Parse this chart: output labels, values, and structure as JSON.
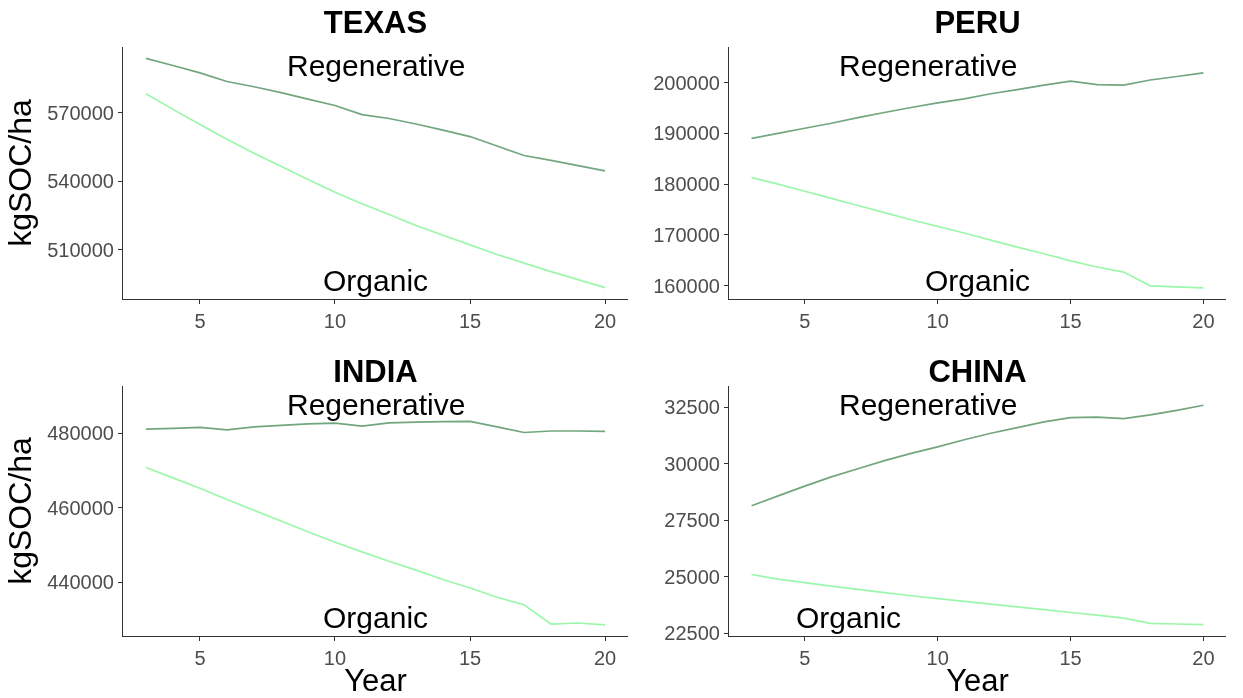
{
  "chart_data": [
    {
      "type": "line",
      "title": "TEXAS",
      "ylabel": "kgSOC/ha",
      "x": [
        3,
        4,
        5,
        6,
        7,
        8,
        9,
        10,
        11,
        12,
        13,
        14,
        15,
        16,
        17,
        18,
        19,
        20
      ],
      "series": [
        {
          "name": "Regenerative",
          "color": "#72a67e",
          "values": [
            593700,
            590600,
            587400,
            583600,
            581300,
            578700,
            575900,
            573100,
            569100,
            567400,
            565000,
            562300,
            559500,
            555400,
            551200,
            549100,
            546800,
            544500
          ]
        },
        {
          "name": "Organic",
          "color": "#9cf7aa",
          "values": [
            578200,
            571400,
            564800,
            558300,
            552200,
            546500,
            540700,
            535100,
            530100,
            525400,
            520600,
            516300,
            512100,
            507900,
            504100,
            500400,
            496900,
            493400
          ]
        }
      ],
      "xlim": [
        2.15,
        20.85
      ],
      "xticks": [
        5,
        10,
        15,
        20
      ],
      "ylim": [
        488400,
        598700
      ],
      "yticks": [
        510000,
        540000,
        570000
      ]
    },
    {
      "type": "line",
      "title": "PERU",
      "x": [
        3,
        4,
        5,
        6,
        7,
        8,
        9,
        10,
        11,
        12,
        13,
        14,
        15,
        16,
        17,
        18,
        19,
        20
      ],
      "series": [
        {
          "name": "Regenerative",
          "color": "#72a67e",
          "values": [
            189000,
            190000,
            191000,
            192000,
            193100,
            194100,
            195100,
            196000,
            196800,
            197800,
            198600,
            199500,
            200300,
            199600,
            199500,
            200500,
            201200,
            201900
          ]
        },
        {
          "name": "Organic",
          "color": "#9cf7aa",
          "values": [
            181300,
            180000,
            178600,
            177200,
            175800,
            174400,
            173000,
            171700,
            170400,
            169000,
            167600,
            166300,
            164900,
            163700,
            162700,
            160000,
            159800,
            159600
          ]
        }
      ],
      "xlim": [
        2.15,
        20.85
      ],
      "xticks": [
        5,
        10,
        15,
        20
      ],
      "ylim": [
        157400,
        207000
      ],
      "yticks": [
        160000,
        170000,
        180000,
        190000,
        200000
      ]
    },
    {
      "type": "line",
      "title": "INDIA",
      "xlabel": "Year",
      "ylabel": "kgSOC/ha",
      "x": [
        3,
        4,
        5,
        6,
        7,
        8,
        9,
        10,
        11,
        12,
        13,
        14,
        15,
        16,
        17,
        18,
        19,
        20
      ],
      "series": [
        {
          "name": "Regenerative",
          "color": "#72a67e",
          "values": [
            481100,
            481300,
            481600,
            480900,
            481700,
            482100,
            482500,
            482700,
            481900,
            482800,
            483000,
            483100,
            483200,
            481700,
            480200,
            480600,
            480600,
            480500
          ]
        },
        {
          "name": "Organic",
          "color": "#9cf7aa",
          "values": [
            470800,
            468000,
            465200,
            462200,
            459300,
            456400,
            453500,
            450700,
            448100,
            445600,
            443200,
            440700,
            438400,
            435900,
            433900,
            428700,
            429000,
            428500
          ]
        }
      ],
      "xlim": [
        2.15,
        20.85
      ],
      "xticks": [
        5,
        10,
        15,
        20
      ],
      "ylim": [
        425500,
        492700
      ],
      "yticks": [
        440000,
        460000,
        480000
      ]
    },
    {
      "type": "line",
      "title": "CHINA",
      "xlabel": "Year",
      "x": [
        3,
        4,
        5,
        6,
        7,
        8,
        9,
        10,
        11,
        12,
        13,
        14,
        15,
        16,
        17,
        18,
        19,
        20
      ],
      "series": [
        {
          "name": "Regenerative",
          "color": "#72a67e",
          "values": [
            28140,
            28580,
            29010,
            29420,
            29780,
            30140,
            30460,
            30750,
            31060,
            31350,
            31600,
            31850,
            32040,
            32060,
            32000,
            32160,
            32360,
            32590
          ]
        },
        {
          "name": "Organic",
          "color": "#9cf7aa",
          "values": [
            25100,
            24900,
            24740,
            24590,
            24440,
            24300,
            24160,
            24030,
            23910,
            23790,
            23670,
            23550,
            23420,
            23300,
            23170,
            22940,
            22910,
            22880
          ]
        }
      ],
      "xlim": [
        2.15,
        20.85
      ],
      "xticks": [
        5,
        10,
        15,
        20
      ],
      "ylim": [
        22380,
        33440
      ],
      "yticks": [
        22500,
        25000,
        27500,
        30000,
        32500
      ]
    }
  ]
}
